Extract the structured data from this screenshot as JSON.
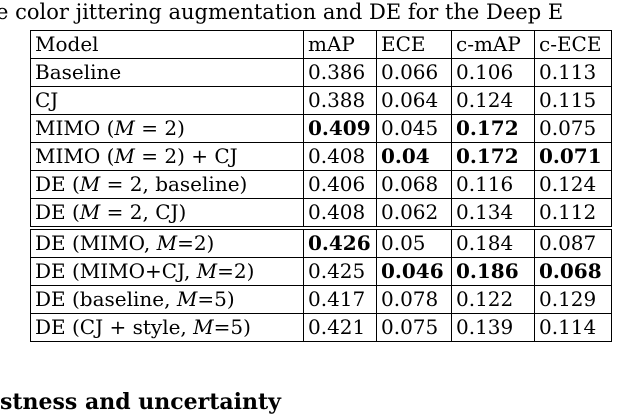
{
  "caption": "e color jittering augmentation and DE for the Deep E",
  "table": {
    "headers": [
      "Model",
      "mAP",
      "ECE",
      "c-mAP",
      "c-ECE"
    ],
    "rows": [
      {
        "model": "Baseline",
        "values": [
          "0.386",
          "0.066",
          "0.106",
          "0.113"
        ],
        "bold": [
          false,
          false,
          false,
          false
        ]
      },
      {
        "model": "CJ",
        "values": [
          "0.388",
          "0.064",
          "0.124",
          "0.115"
        ],
        "bold": [
          false,
          false,
          false,
          false
        ]
      },
      {
        "model": "MIMO (M = 2)",
        "values": [
          "0.409",
          "0.045",
          "0.172",
          "0.075"
        ],
        "bold": [
          true,
          false,
          true,
          false
        ]
      },
      {
        "model": "MIMO (M = 2) + CJ",
        "values": [
          "0.408",
          "0.04",
          "0.172",
          "0.071"
        ],
        "bold": [
          false,
          true,
          true,
          true
        ]
      },
      {
        "model": "DE (M = 2, baseline)",
        "values": [
          "0.406",
          "0.068",
          "0.116",
          "0.124"
        ],
        "bold": [
          false,
          false,
          false,
          false
        ]
      },
      {
        "model": "DE (M = 2, CJ)",
        "values": [
          "0.408",
          "0.062",
          "0.134",
          "0.112"
        ],
        "bold": [
          false,
          false,
          false,
          false
        ]
      },
      {
        "model": "DE (MIMO, M=2)",
        "values": [
          "0.426",
          "0.05",
          "0.184",
          "0.087"
        ],
        "bold": [
          true,
          false,
          false,
          false
        ]
      },
      {
        "model": "DE (MIMO+CJ, M=2)",
        "values": [
          "0.425",
          "0.046",
          "0.186",
          "0.068"
        ],
        "bold": [
          false,
          true,
          true,
          true
        ]
      },
      {
        "model": "DE (baseline, M=5)",
        "values": [
          "0.417",
          "0.078",
          "0.122",
          "0.129"
        ],
        "bold": [
          false,
          false,
          false,
          false
        ]
      },
      {
        "model": "DE (CJ + style, M=5)",
        "values": [
          "0.421",
          "0.075",
          "0.139",
          "0.114"
        ],
        "bold": [
          false,
          false,
          false,
          false
        ]
      }
    ]
  },
  "section_heading": "stness and uncertainty"
}
